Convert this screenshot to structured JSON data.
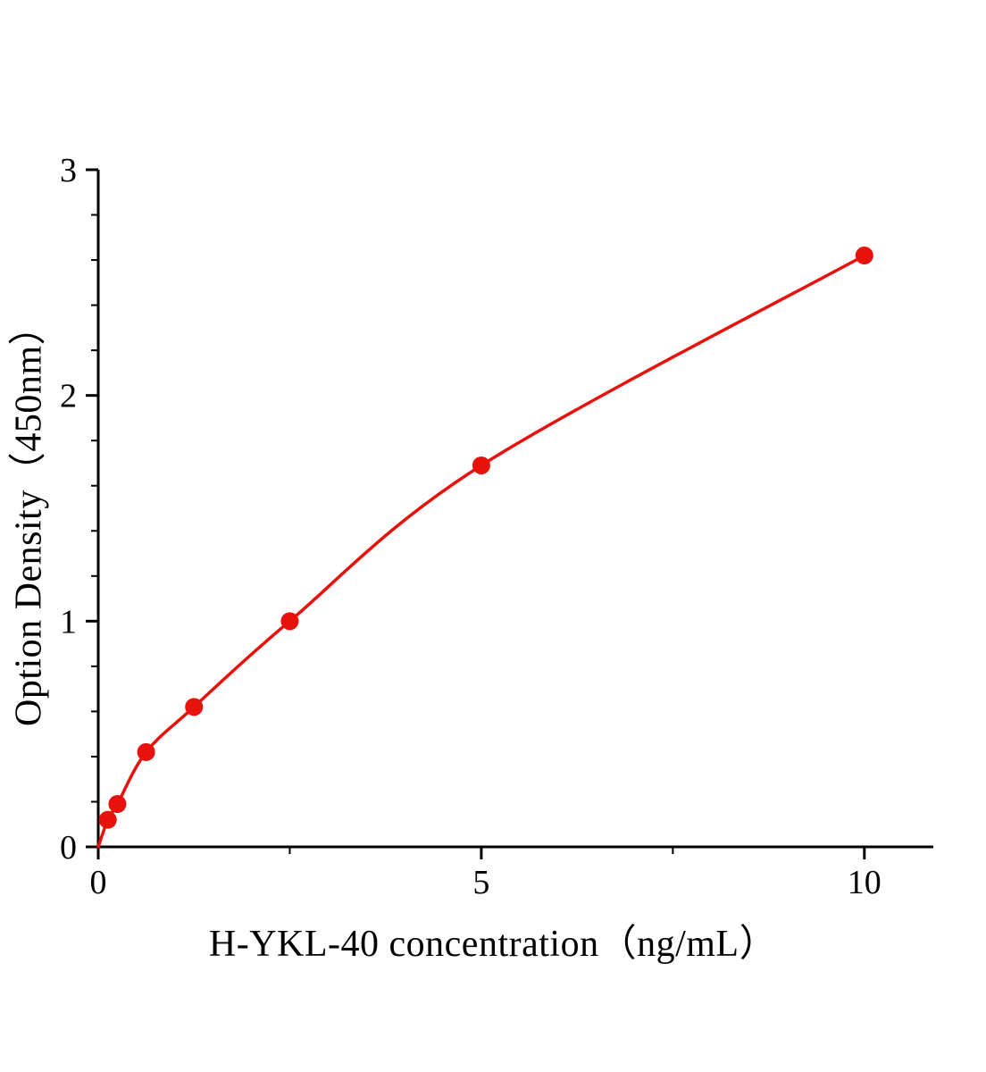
{
  "chart_data": {
    "type": "scatter",
    "title": "",
    "xlabel": "H-YKL-40 concentration（ng/mL）",
    "ylabel": "Option Density（450nm）",
    "x": [
      0.125,
      0.25,
      0.625,
      1.25,
      2.5,
      5,
      10
    ],
    "y": [
      0.12,
      0.19,
      0.42,
      0.62,
      1.0,
      1.69,
      2.62
    ],
    "curve_start": [
      0,
      0
    ],
    "xlim": [
      0,
      10.9
    ],
    "ylim": [
      0,
      3
    ],
    "x_major_ticks": [
      0,
      5,
      10
    ],
    "x_minor_ticks": [
      2.5,
      7.5
    ],
    "y_major_ticks": [
      0,
      1,
      2,
      3
    ],
    "y_minor_step": 0.2,
    "grid": "off",
    "legend": "none",
    "marker_color": "#e8120c",
    "line_color": "#e8120c",
    "axis_color": "#000000"
  }
}
